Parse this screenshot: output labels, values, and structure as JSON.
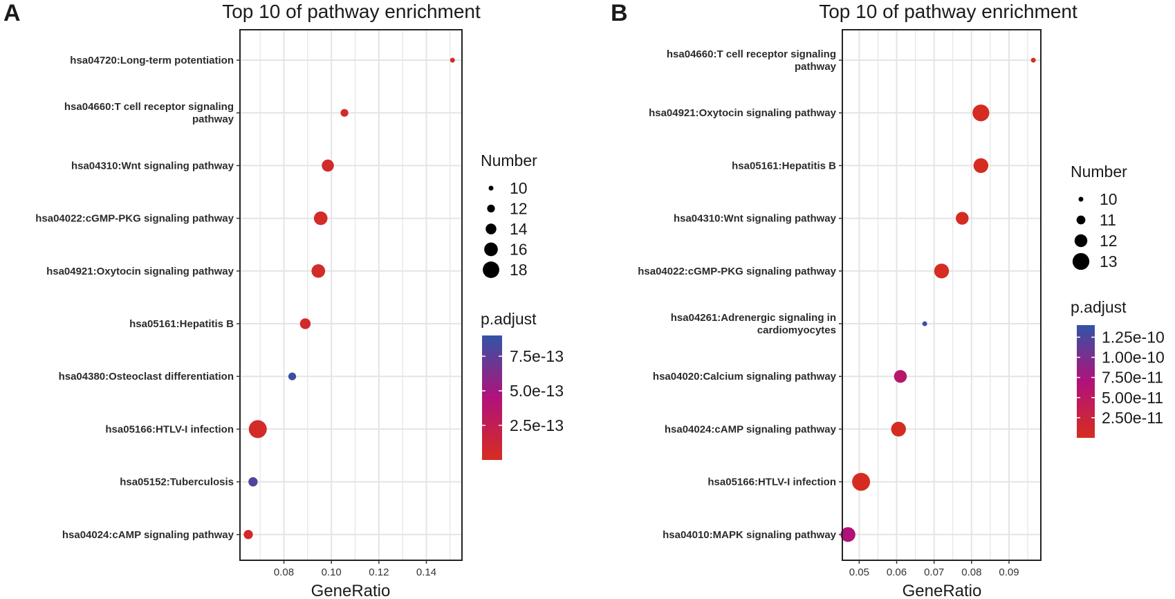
{
  "chart_data": [
    {
      "type": "scatter",
      "panel_label": "A",
      "title": "Top 10 of pathway enrichment",
      "xlabel": "GeneRatio",
      "xlim": [
        0.0615,
        0.155
      ],
      "xticks": [
        "0.08",
        "0.10",
        "0.12",
        "0.14"
      ],
      "grid": true,
      "categories": [
        [
          "hsa04720:Long-term potentiation"
        ],
        [
          "hsa04660:T cell receptor signaling",
          "pathway"
        ],
        [
          "hsa04310:Wnt signaling pathway"
        ],
        [
          "hsa04022:cGMP-PKG signaling pathway"
        ],
        [
          "hsa04921:Oxytocin signaling pathway"
        ],
        [
          "hsa05161:Hepatitis B"
        ],
        [
          "hsa04380:Osteoclast differentiation"
        ],
        [
          "hsa05166:HTLV-I infection"
        ],
        [
          "hsa05152:Tuberculosis"
        ],
        [
          "hsa04024:cAMP signaling pathway"
        ]
      ],
      "points": [
        {
          "gene_ratio": 0.151,
          "count": 10,
          "p_adjust": 3e-14
        },
        {
          "gene_ratio": 0.1055,
          "count": 12,
          "p_adjust": 6e-14
        },
        {
          "gene_ratio": 0.0985,
          "count": 15,
          "p_adjust": 5e-14
        },
        {
          "gene_ratio": 0.0955,
          "count": 16,
          "p_adjust": 4e-14
        },
        {
          "gene_ratio": 0.0945,
          "count": 16,
          "p_adjust": 4e-14
        },
        {
          "gene_ratio": 0.089,
          "count": 14,
          "p_adjust": 6e-14
        },
        {
          "gene_ratio": 0.0835,
          "count": 12,
          "p_adjust": 8.6e-13
        },
        {
          "gene_ratio": 0.069,
          "count": 19,
          "p_adjust": 4e-14
        },
        {
          "gene_ratio": 0.067,
          "count": 13,
          "p_adjust": 7.9e-13
        },
        {
          "gene_ratio": 0.065,
          "count": 13,
          "p_adjust": 5e-14
        }
      ],
      "size_legend": {
        "title": "Number",
        "values": [
          10,
          12,
          14,
          16,
          18
        ],
        "labels": [
          "10",
          "12",
          "14",
          "16",
          "18"
        ]
      },
      "color_legend": {
        "title": "p.adjust",
        "min": 0.0,
        "max": 9e-13,
        "ticks": [
          7.5e-13,
          5e-13,
          2.5e-13
        ],
        "tick_labels": [
          "7.5e-13",
          "5.0e-13",
          "2.5e-13"
        ],
        "low_color": "#d62d20",
        "mid_color": "#b1127a",
        "high_color": "#3254a6"
      },
      "size_range": [
        10,
        19
      ]
    },
    {
      "type": "scatter",
      "panel_label": "B",
      "title": "Top 10 of pathway enrichment",
      "xlabel": "GeneRatio",
      "xlim": [
        0.0455,
        0.0985
      ],
      "xticks": [
        "0.05",
        "0.06",
        "0.07",
        "0.08",
        "0.09"
      ],
      "grid": true,
      "categories": [
        [
          "hsa04660:T cell receptor signaling",
          "pathway"
        ],
        [
          "hsa04921:Oxytocin signaling pathway"
        ],
        [
          "hsa05161:Hepatitis B"
        ],
        [
          "hsa04310:Wnt signaling pathway"
        ],
        [
          "hsa04022:cGMP-PKG signaling pathway"
        ],
        [
          "hsa04261:Adrenergic signaling in",
          "cardiomyocytes"
        ],
        [
          "hsa04020:Calcium signaling pathway"
        ],
        [
          "hsa04024:cAMP signaling pathway"
        ],
        [
          "hsa05166:HTLV-I infection"
        ],
        [
          "hsa04010:MAPK signaling pathway"
        ]
      ],
      "points": [
        {
          "gene_ratio": 0.0965,
          "count": 10,
          "p_adjust": 1.5e-12
        },
        {
          "gene_ratio": 0.0825,
          "count": 13,
          "p_adjust": 1.5e-12
        },
        {
          "gene_ratio": 0.0825,
          "count": 12.5,
          "p_adjust": 1.5e-12
        },
        {
          "gene_ratio": 0.0775,
          "count": 12,
          "p_adjust": 1.5e-12
        },
        {
          "gene_ratio": 0.072,
          "count": 12.5,
          "p_adjust": 2e-12
        },
        {
          "gene_ratio": 0.0675,
          "count": 10,
          "p_adjust": 1.35e-10
        },
        {
          "gene_ratio": 0.061,
          "count": 12,
          "p_adjust": 5.8e-11
        },
        {
          "gene_ratio": 0.0605,
          "count": 12.5,
          "p_adjust": 1.5e-12
        },
        {
          "gene_ratio": 0.0505,
          "count": 13.3,
          "p_adjust": 1.5e-12
        },
        {
          "gene_ratio": 0.047,
          "count": 12.5,
          "p_adjust": 7e-11
        }
      ],
      "size_legend": {
        "title": "Number",
        "values": [
          10,
          11,
          12,
          13
        ],
        "labels": [
          "10",
          "11",
          "12",
          "13"
        ]
      },
      "color_legend": {
        "title": "p.adjust",
        "min": 0.0,
        "max": 1.4e-10,
        "ticks": [
          1.25e-10,
          1e-10,
          7.5e-11,
          5e-11,
          2.5e-11
        ],
        "tick_labels": [
          "1.25e-10",
          "1.00e-10",
          "7.50e-11",
          "5.00e-11",
          "2.50e-11"
        ],
        "low_color": "#d62d20",
        "mid_color": "#b1127a",
        "high_color": "#3254a6"
      },
      "size_range": [
        10,
        13.3
      ]
    }
  ]
}
